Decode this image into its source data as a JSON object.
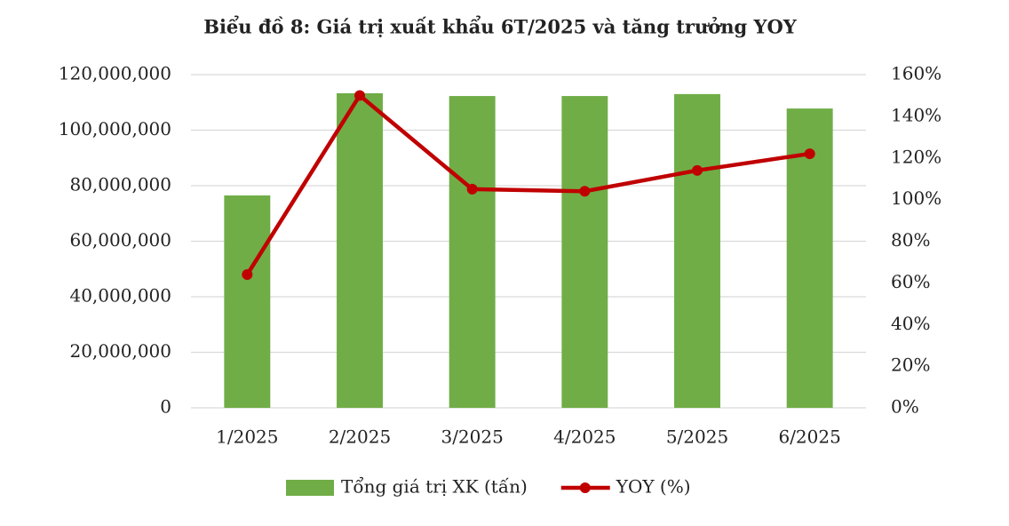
{
  "chart_data": {
    "type": "bar",
    "title": "Biểu đồ 8: Giá trị xuất khẩu 6T/2025 và tăng trưởng YOY",
    "categories": [
      "1/2025",
      "2/2025",
      "3/2025",
      "4/2025",
      "5/2025",
      "6/2025"
    ],
    "series": [
      {
        "name": "Tổng giá trị XK (tấn)",
        "type": "bar",
        "color": "#70ad47",
        "values": [
          76500000,
          113300000,
          112300000,
          112300000,
          113000000,
          107800000
        ]
      },
      {
        "name": "YOY (%)",
        "type": "line",
        "axis": "y2",
        "color": "#c00000",
        "values": [
          64,
          150,
          105,
          104,
          114,
          122
        ]
      }
    ],
    "ylim": [
      0,
      120000000
    ],
    "yticks": [
      0,
      {
        "value": 20000000,
        "label": "20,000,000"
      },
      {
        "value": 40000000,
        "label": "40,000,000"
      },
      {
        "value": 60000000,
        "label": "60,000,000"
      },
      {
        "value": 80000000,
        "label": "80,000,000"
      },
      {
        "value": 100000000,
        "label": "100,000,000"
      },
      {
        "value": 120000000,
        "label": "120,000,000"
      }
    ],
    "y2lim": [
      0,
      160
    ],
    "y2ticks": [
      {
        "value": 0,
        "label": "0%"
      },
      {
        "value": 20,
        "label": "20%"
      },
      {
        "value": 40,
        "label": "40%"
      },
      {
        "value": 60,
        "label": "60%"
      },
      {
        "value": 80,
        "label": "80%"
      },
      {
        "value": 100,
        "label": "100%"
      },
      {
        "value": 120,
        "label": "120%"
      },
      {
        "value": 140,
        "label": "140%"
      },
      {
        "value": 160,
        "label": "160%"
      }
    ],
    "grid": true,
    "legend": "bottom"
  }
}
